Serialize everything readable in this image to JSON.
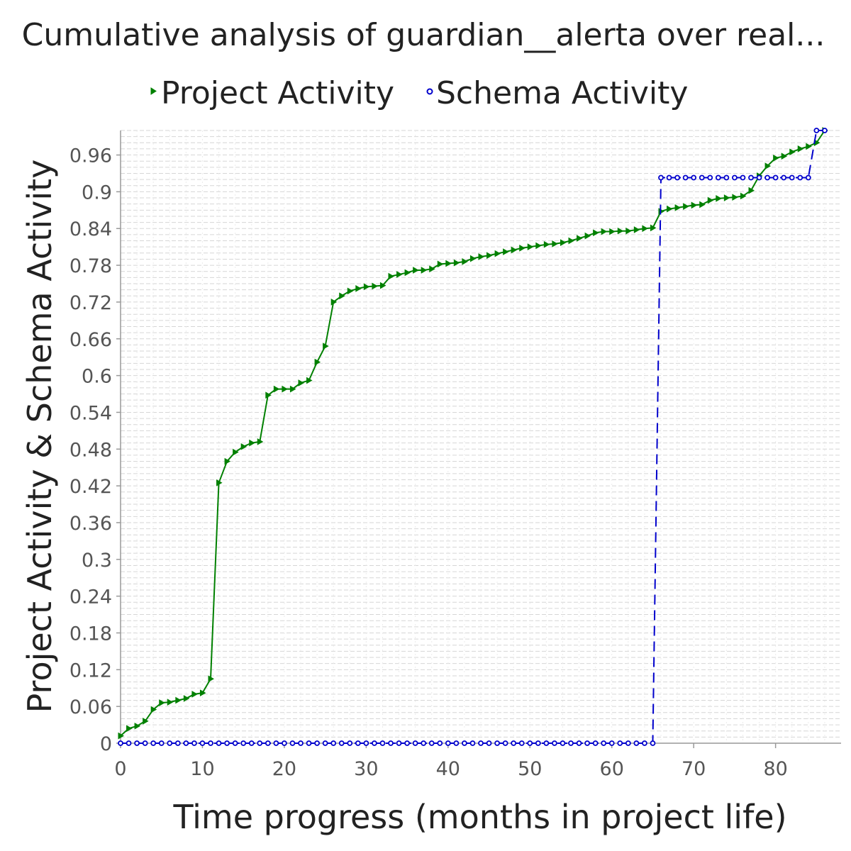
{
  "chart_data": {
    "type": "line",
    "title": "Cumulative analysis of guardian__alerta over real...",
    "xlabel": "Time progress (months in project life)",
    "ylabel": "Project Activity & Schema Activity",
    "xlim": [
      0,
      88
    ],
    "ylim": [
      0,
      1.0
    ],
    "x_ticks": [
      "0",
      "10",
      "20",
      "30",
      "40",
      "50",
      "60",
      "70",
      "80"
    ],
    "y_ticks": [
      "0",
      "0.06",
      "0.12",
      "0.18",
      "0.24",
      "0.3",
      "0.36",
      "0.42",
      "0.48",
      "0.54",
      "0.6",
      "0.66",
      "0.72",
      "0.78",
      "0.84",
      "0.9",
      "0.96"
    ],
    "grid": true,
    "legend_position": "top",
    "series": [
      {
        "name": "Project Activity",
        "color": "#008000",
        "marker": "triangle-right",
        "line_style": "solid",
        "points": [
          [
            0,
            0.012
          ],
          [
            1,
            0.024
          ],
          [
            2,
            0.028
          ],
          [
            3,
            0.036
          ],
          [
            4,
            0.055
          ],
          [
            5,
            0.066
          ],
          [
            6,
            0.067
          ],
          [
            7,
            0.07
          ],
          [
            8,
            0.073
          ],
          [
            9,
            0.08
          ],
          [
            10,
            0.082
          ],
          [
            11,
            0.105
          ],
          [
            12,
            0.425
          ],
          [
            13,
            0.46
          ],
          [
            14,
            0.475
          ],
          [
            15,
            0.484
          ],
          [
            16,
            0.49
          ],
          [
            17,
            0.492
          ],
          [
            18,
            0.568
          ],
          [
            19,
            0.578
          ],
          [
            20,
            0.578
          ],
          [
            21,
            0.578
          ],
          [
            22,
            0.588
          ],
          [
            23,
            0.592
          ],
          [
            24,
            0.622
          ],
          [
            25,
            0.648
          ],
          [
            26,
            0.72
          ],
          [
            27,
            0.73
          ],
          [
            28,
            0.738
          ],
          [
            29,
            0.742
          ],
          [
            30,
            0.745
          ],
          [
            31,
            0.746
          ],
          [
            32,
            0.747
          ],
          [
            33,
            0.762
          ],
          [
            34,
            0.765
          ],
          [
            35,
            0.768
          ],
          [
            36,
            0.772
          ],
          [
            37,
            0.772
          ],
          [
            38,
            0.774
          ],
          [
            39,
            0.782
          ],
          [
            40,
            0.783
          ],
          [
            41,
            0.784
          ],
          [
            42,
            0.786
          ],
          [
            43,
            0.791
          ],
          [
            44,
            0.794
          ],
          [
            45,
            0.796
          ],
          [
            46,
            0.799
          ],
          [
            47,
            0.802
          ],
          [
            48,
            0.805
          ],
          [
            49,
            0.808
          ],
          [
            50,
            0.81
          ],
          [
            51,
            0.812
          ],
          [
            52,
            0.814
          ],
          [
            53,
            0.815
          ],
          [
            54,
            0.817
          ],
          [
            55,
            0.82
          ],
          [
            56,
            0.824
          ],
          [
            57,
            0.828
          ],
          [
            58,
            0.833
          ],
          [
            59,
            0.835
          ],
          [
            60,
            0.835
          ],
          [
            61,
            0.836
          ],
          [
            62,
            0.836
          ],
          [
            63,
            0.838
          ],
          [
            64,
            0.84
          ],
          [
            65,
            0.841
          ],
          [
            66,
            0.868
          ],
          [
            67,
            0.872
          ],
          [
            68,
            0.874
          ],
          [
            69,
            0.876
          ],
          [
            70,
            0.878
          ],
          [
            71,
            0.879
          ],
          [
            72,
            0.886
          ],
          [
            73,
            0.889
          ],
          [
            74,
            0.89
          ],
          [
            75,
            0.891
          ],
          [
            76,
            0.893
          ],
          [
            77,
            0.902
          ],
          [
            78,
            0.926
          ],
          [
            79,
            0.942
          ],
          [
            80,
            0.955
          ],
          [
            81,
            0.958
          ],
          [
            82,
            0.965
          ],
          [
            83,
            0.97
          ],
          [
            84,
            0.974
          ],
          [
            85,
            0.98
          ],
          [
            86,
            1.0
          ]
        ]
      },
      {
        "name": "Schema Activity",
        "color": "#0000cc",
        "marker": "circle",
        "line_style": "dashed",
        "points": [
          [
            0,
            0.0
          ],
          [
            1,
            0.0
          ],
          [
            2,
            0.0
          ],
          [
            3,
            0.0
          ],
          [
            4,
            0.0
          ],
          [
            5,
            0.0
          ],
          [
            6,
            0.0
          ],
          [
            7,
            0.0
          ],
          [
            8,
            0.0
          ],
          [
            9,
            0.0
          ],
          [
            10,
            0.0
          ],
          [
            11,
            0.0
          ],
          [
            12,
            0.0
          ],
          [
            13,
            0.0
          ],
          [
            14,
            0.0
          ],
          [
            15,
            0.0
          ],
          [
            16,
            0.0
          ],
          [
            17,
            0.0
          ],
          [
            18,
            0.0
          ],
          [
            19,
            0.0
          ],
          [
            20,
            0.0
          ],
          [
            21,
            0.0
          ],
          [
            22,
            0.0
          ],
          [
            23,
            0.0
          ],
          [
            24,
            0.0
          ],
          [
            25,
            0.0
          ],
          [
            26,
            0.0
          ],
          [
            27,
            0.0
          ],
          [
            28,
            0.0
          ],
          [
            29,
            0.0
          ],
          [
            30,
            0.0
          ],
          [
            31,
            0.0
          ],
          [
            32,
            0.0
          ],
          [
            33,
            0.0
          ],
          [
            34,
            0.0
          ],
          [
            35,
            0.0
          ],
          [
            36,
            0.0
          ],
          [
            37,
            0.0
          ],
          [
            38,
            0.0
          ],
          [
            39,
            0.0
          ],
          [
            40,
            0.0
          ],
          [
            41,
            0.0
          ],
          [
            42,
            0.0
          ],
          [
            43,
            0.0
          ],
          [
            44,
            0.0
          ],
          [
            45,
            0.0
          ],
          [
            46,
            0.0
          ],
          [
            47,
            0.0
          ],
          [
            48,
            0.0
          ],
          [
            49,
            0.0
          ],
          [
            50,
            0.0
          ],
          [
            51,
            0.0
          ],
          [
            52,
            0.0
          ],
          [
            53,
            0.0
          ],
          [
            54,
            0.0
          ],
          [
            55,
            0.0
          ],
          [
            56,
            0.0
          ],
          [
            57,
            0.0
          ],
          [
            58,
            0.0
          ],
          [
            59,
            0.0
          ],
          [
            60,
            0.0
          ],
          [
            61,
            0.0
          ],
          [
            62,
            0.0
          ],
          [
            63,
            0.0
          ],
          [
            64,
            0.0
          ],
          [
            65,
            0.0
          ],
          [
            66,
            0.923
          ],
          [
            67,
            0.923
          ],
          [
            68,
            0.923
          ],
          [
            69,
            0.923
          ],
          [
            70,
            0.923
          ],
          [
            71,
            0.923
          ],
          [
            72,
            0.923
          ],
          [
            73,
            0.923
          ],
          [
            74,
            0.923
          ],
          [
            75,
            0.923
          ],
          [
            76,
            0.923
          ],
          [
            77,
            0.923
          ],
          [
            78,
            0.923
          ],
          [
            79,
            0.923
          ],
          [
            80,
            0.923
          ],
          [
            81,
            0.923
          ],
          [
            82,
            0.923
          ],
          [
            83,
            0.923
          ],
          [
            84,
            0.923
          ],
          [
            85,
            1.0
          ],
          [
            86,
            1.0
          ]
        ]
      }
    ]
  }
}
